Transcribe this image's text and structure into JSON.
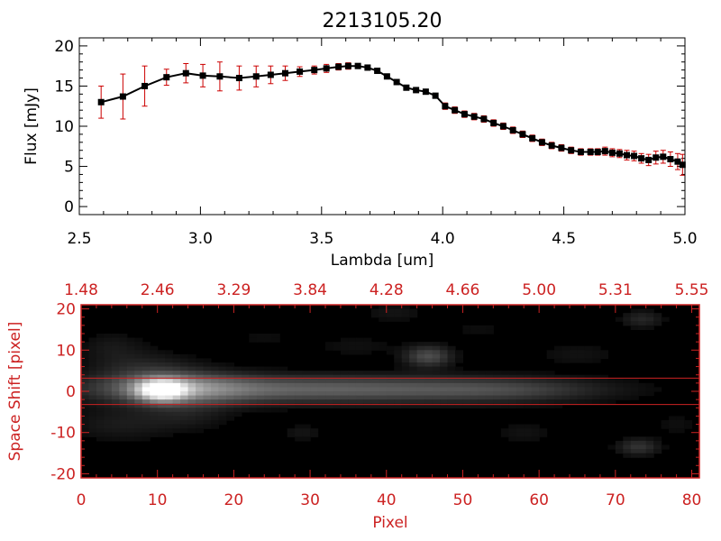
{
  "title": "2213105.20",
  "chart_data": [
    {
      "type": "line",
      "xlabel": "Lambda [um]",
      "ylabel": "Flux [mJy]",
      "xlim": [
        2.5,
        5.0
      ],
      "ylim": [
        -1,
        21
      ],
      "xticks": [
        "2.5",
        "3.0",
        "3.5",
        "4.0",
        "4.5",
        "5.0"
      ],
      "yticks": [
        "0",
        "5",
        "10",
        "15",
        "20"
      ],
      "colors": {
        "line": "#000000",
        "marker": "#000000",
        "errorbar": "#cc0000",
        "axes": "#000000"
      },
      "series": [
        {
          "x": [
            2.59,
            2.68,
            2.77,
            2.86,
            2.94,
            3.01,
            3.08,
            3.16,
            3.23,
            3.29,
            3.35,
            3.41,
            3.47,
            3.52,
            3.57,
            3.61,
            3.65,
            3.69,
            3.73,
            3.77,
            3.81,
            3.85,
            3.89,
            3.93,
            3.97,
            4.01,
            4.05,
            4.09,
            4.13,
            4.17,
            4.21,
            4.25,
            4.29,
            4.33,
            4.37,
            4.41,
            4.45,
            4.49,
            4.53,
            4.57,
            4.61,
            4.64,
            4.67,
            4.7,
            4.73,
            4.76,
            4.79,
            4.82,
            4.85,
            4.88,
            4.91,
            4.94,
            4.97,
            4.99
          ],
          "y": [
            13.0,
            13.7,
            15.0,
            16.1,
            16.6,
            16.3,
            16.2,
            16.0,
            16.2,
            16.4,
            16.6,
            16.8,
            17.0,
            17.2,
            17.4,
            17.5,
            17.5,
            17.3,
            16.9,
            16.2,
            15.5,
            14.8,
            14.5,
            14.3,
            13.8,
            12.5,
            12.0,
            11.5,
            11.2,
            10.9,
            10.4,
            10.0,
            9.5,
            9.0,
            8.5,
            8.0,
            7.6,
            7.3,
            7.0,
            6.8,
            6.8,
            6.8,
            6.9,
            6.7,
            6.6,
            6.4,
            6.3,
            6.0,
            5.8,
            6.1,
            6.2,
            5.9,
            5.6,
            5.2
          ],
          "err": [
            2.0,
            2.8,
            2.5,
            1.0,
            1.2,
            1.4,
            1.8,
            1.5,
            1.3,
            1.1,
            0.9,
            0.6,
            0.5,
            0.5,
            0.4,
            0.4,
            0.3,
            0.3,
            0.3,
            0.3,
            0.3,
            0.3,
            0.3,
            0.3,
            0.3,
            0.4,
            0.4,
            0.4,
            0.4,
            0.4,
            0.4,
            0.4,
            0.4,
            0.4,
            0.4,
            0.4,
            0.4,
            0.4,
            0.4,
            0.4,
            0.4,
            0.4,
            0.5,
            0.5,
            0.5,
            0.6,
            0.6,
            0.6,
            0.7,
            0.8,
            0.8,
            0.9,
            1.0,
            1.3
          ]
        }
      ]
    },
    {
      "type": "heatmap",
      "xlabel": "Pixel",
      "ylabel": "Space Shift [pixel]",
      "xlim": [
        0,
        81
      ],
      "ylim": [
        -21,
        21
      ],
      "xticks": [
        "0",
        "10",
        "20",
        "30",
        "40",
        "50",
        "60",
        "70",
        "80"
      ],
      "yticks": [
        "-20",
        "-10",
        "0",
        "10",
        "20"
      ],
      "top_ticks": [
        "1.48",
        "2.46",
        "3.29",
        "3.84",
        "4.28",
        "4.66",
        "5.00",
        "5.31",
        "5.55"
      ],
      "aperture": [
        -3.2,
        3.2
      ],
      "colors": {
        "axes": "#cc2222",
        "aperture": "#cc2222",
        "background": "#000000"
      },
      "colormap": "grayscale",
      "blobs": [
        {
          "x": 10.5,
          "y": 0.3,
          "sx": 2.2,
          "sy": 1.8,
          "amp": 0.8
        },
        {
          "x": 13,
          "y": 0.6,
          "sx": 6,
          "sy": 2.8,
          "amp": 0.35
        },
        {
          "x": 30,
          "y": 0.5,
          "sx": 20,
          "sy": 2.3,
          "amp": 0.38
        },
        {
          "x": 56,
          "y": 0.3,
          "sx": 9,
          "sy": 2.0,
          "amp": 0.14
        },
        {
          "x": 45.5,
          "y": 8.5,
          "sx": 2.2,
          "sy": 1.8,
          "amp": 0.3
        },
        {
          "x": 8,
          "y": 5.5,
          "sx": 5,
          "sy": 3,
          "amp": 0.13
        },
        {
          "x": 4,
          "y": 11,
          "sx": 3,
          "sy": 2.5,
          "amp": 0.08
        },
        {
          "x": 5,
          "y": -8,
          "sx": 5,
          "sy": 3,
          "amp": 0.1
        },
        {
          "x": 14,
          "y": -6,
          "sx": 4,
          "sy": 2.5,
          "amp": 0.09
        },
        {
          "x": 29,
          "y": -10,
          "sx": 2,
          "sy": 1.5,
          "amp": 0.08
        },
        {
          "x": 36,
          "y": 11,
          "sx": 4,
          "sy": 2,
          "amp": 0.06
        },
        {
          "x": 41,
          "y": 19,
          "sx": 3,
          "sy": 1.5,
          "amp": 0.08
        },
        {
          "x": 58,
          "y": -10,
          "sx": 3,
          "sy": 2,
          "amp": 0.07
        },
        {
          "x": 65,
          "y": 9,
          "sx": 4,
          "sy": 2,
          "amp": 0.07
        },
        {
          "x": 73.5,
          "y": 17.5,
          "sx": 2,
          "sy": 1.5,
          "amp": 0.15
        },
        {
          "x": 73,
          "y": -13.5,
          "sx": 2,
          "sy": 1.5,
          "amp": 0.2
        },
        {
          "x": 78,
          "y": -8,
          "sx": 2,
          "sy": 2,
          "amp": 0.06
        },
        {
          "x": 24,
          "y": 13,
          "sx": 3,
          "sy": 2,
          "amp": 0.05
        },
        {
          "x": 52,
          "y": 15,
          "sx": 3,
          "sy": 2,
          "amp": 0.05
        }
      ]
    }
  ]
}
